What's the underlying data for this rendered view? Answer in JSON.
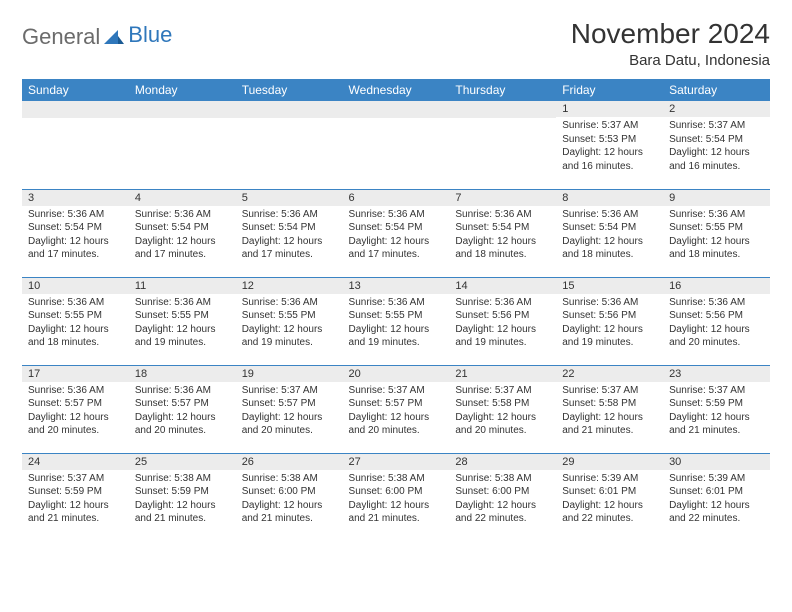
{
  "logo": {
    "general": "General",
    "blue": "Blue"
  },
  "title": "November 2024",
  "subtitle": "Bara Datu, Indonesia",
  "colors": {
    "header_bg": "#3b84c4",
    "header_text": "#ffffff",
    "daynum_bg": "#ececec",
    "row_border": "#3b84c4",
    "text": "#333333",
    "logo_gray": "#6b6b6b",
    "logo_blue": "#2f77bb"
  },
  "day_headers": [
    "Sunday",
    "Monday",
    "Tuesday",
    "Wednesday",
    "Thursday",
    "Friday",
    "Saturday"
  ],
  "weeks": [
    [
      {
        "n": "",
        "sr": "",
        "ss": "",
        "dl": ""
      },
      {
        "n": "",
        "sr": "",
        "ss": "",
        "dl": ""
      },
      {
        "n": "",
        "sr": "",
        "ss": "",
        "dl": ""
      },
      {
        "n": "",
        "sr": "",
        "ss": "",
        "dl": ""
      },
      {
        "n": "",
        "sr": "",
        "ss": "",
        "dl": ""
      },
      {
        "n": "1",
        "sr": "Sunrise: 5:37 AM",
        "ss": "Sunset: 5:53 PM",
        "dl": "Daylight: 12 hours and 16 minutes."
      },
      {
        "n": "2",
        "sr": "Sunrise: 5:37 AM",
        "ss": "Sunset: 5:54 PM",
        "dl": "Daylight: 12 hours and 16 minutes."
      }
    ],
    [
      {
        "n": "3",
        "sr": "Sunrise: 5:36 AM",
        "ss": "Sunset: 5:54 PM",
        "dl": "Daylight: 12 hours and 17 minutes."
      },
      {
        "n": "4",
        "sr": "Sunrise: 5:36 AM",
        "ss": "Sunset: 5:54 PM",
        "dl": "Daylight: 12 hours and 17 minutes."
      },
      {
        "n": "5",
        "sr": "Sunrise: 5:36 AM",
        "ss": "Sunset: 5:54 PM",
        "dl": "Daylight: 12 hours and 17 minutes."
      },
      {
        "n": "6",
        "sr": "Sunrise: 5:36 AM",
        "ss": "Sunset: 5:54 PM",
        "dl": "Daylight: 12 hours and 17 minutes."
      },
      {
        "n": "7",
        "sr": "Sunrise: 5:36 AM",
        "ss": "Sunset: 5:54 PM",
        "dl": "Daylight: 12 hours and 18 minutes."
      },
      {
        "n": "8",
        "sr": "Sunrise: 5:36 AM",
        "ss": "Sunset: 5:54 PM",
        "dl": "Daylight: 12 hours and 18 minutes."
      },
      {
        "n": "9",
        "sr": "Sunrise: 5:36 AM",
        "ss": "Sunset: 5:55 PM",
        "dl": "Daylight: 12 hours and 18 minutes."
      }
    ],
    [
      {
        "n": "10",
        "sr": "Sunrise: 5:36 AM",
        "ss": "Sunset: 5:55 PM",
        "dl": "Daylight: 12 hours and 18 minutes."
      },
      {
        "n": "11",
        "sr": "Sunrise: 5:36 AM",
        "ss": "Sunset: 5:55 PM",
        "dl": "Daylight: 12 hours and 19 minutes."
      },
      {
        "n": "12",
        "sr": "Sunrise: 5:36 AM",
        "ss": "Sunset: 5:55 PM",
        "dl": "Daylight: 12 hours and 19 minutes."
      },
      {
        "n": "13",
        "sr": "Sunrise: 5:36 AM",
        "ss": "Sunset: 5:55 PM",
        "dl": "Daylight: 12 hours and 19 minutes."
      },
      {
        "n": "14",
        "sr": "Sunrise: 5:36 AM",
        "ss": "Sunset: 5:56 PM",
        "dl": "Daylight: 12 hours and 19 minutes."
      },
      {
        "n": "15",
        "sr": "Sunrise: 5:36 AM",
        "ss": "Sunset: 5:56 PM",
        "dl": "Daylight: 12 hours and 19 minutes."
      },
      {
        "n": "16",
        "sr": "Sunrise: 5:36 AM",
        "ss": "Sunset: 5:56 PM",
        "dl": "Daylight: 12 hours and 20 minutes."
      }
    ],
    [
      {
        "n": "17",
        "sr": "Sunrise: 5:36 AM",
        "ss": "Sunset: 5:57 PM",
        "dl": "Daylight: 12 hours and 20 minutes."
      },
      {
        "n": "18",
        "sr": "Sunrise: 5:36 AM",
        "ss": "Sunset: 5:57 PM",
        "dl": "Daylight: 12 hours and 20 minutes."
      },
      {
        "n": "19",
        "sr": "Sunrise: 5:37 AM",
        "ss": "Sunset: 5:57 PM",
        "dl": "Daylight: 12 hours and 20 minutes."
      },
      {
        "n": "20",
        "sr": "Sunrise: 5:37 AM",
        "ss": "Sunset: 5:57 PM",
        "dl": "Daylight: 12 hours and 20 minutes."
      },
      {
        "n": "21",
        "sr": "Sunrise: 5:37 AM",
        "ss": "Sunset: 5:58 PM",
        "dl": "Daylight: 12 hours and 20 minutes."
      },
      {
        "n": "22",
        "sr": "Sunrise: 5:37 AM",
        "ss": "Sunset: 5:58 PM",
        "dl": "Daylight: 12 hours and 21 minutes."
      },
      {
        "n": "23",
        "sr": "Sunrise: 5:37 AM",
        "ss": "Sunset: 5:59 PM",
        "dl": "Daylight: 12 hours and 21 minutes."
      }
    ],
    [
      {
        "n": "24",
        "sr": "Sunrise: 5:37 AM",
        "ss": "Sunset: 5:59 PM",
        "dl": "Daylight: 12 hours and 21 minutes."
      },
      {
        "n": "25",
        "sr": "Sunrise: 5:38 AM",
        "ss": "Sunset: 5:59 PM",
        "dl": "Daylight: 12 hours and 21 minutes."
      },
      {
        "n": "26",
        "sr": "Sunrise: 5:38 AM",
        "ss": "Sunset: 6:00 PM",
        "dl": "Daylight: 12 hours and 21 minutes."
      },
      {
        "n": "27",
        "sr": "Sunrise: 5:38 AM",
        "ss": "Sunset: 6:00 PM",
        "dl": "Daylight: 12 hours and 21 minutes."
      },
      {
        "n": "28",
        "sr": "Sunrise: 5:38 AM",
        "ss": "Sunset: 6:00 PM",
        "dl": "Daylight: 12 hours and 22 minutes."
      },
      {
        "n": "29",
        "sr": "Sunrise: 5:39 AM",
        "ss": "Sunset: 6:01 PM",
        "dl": "Daylight: 12 hours and 22 minutes."
      },
      {
        "n": "30",
        "sr": "Sunrise: 5:39 AM",
        "ss": "Sunset: 6:01 PM",
        "dl": "Daylight: 12 hours and 22 minutes."
      }
    ]
  ]
}
